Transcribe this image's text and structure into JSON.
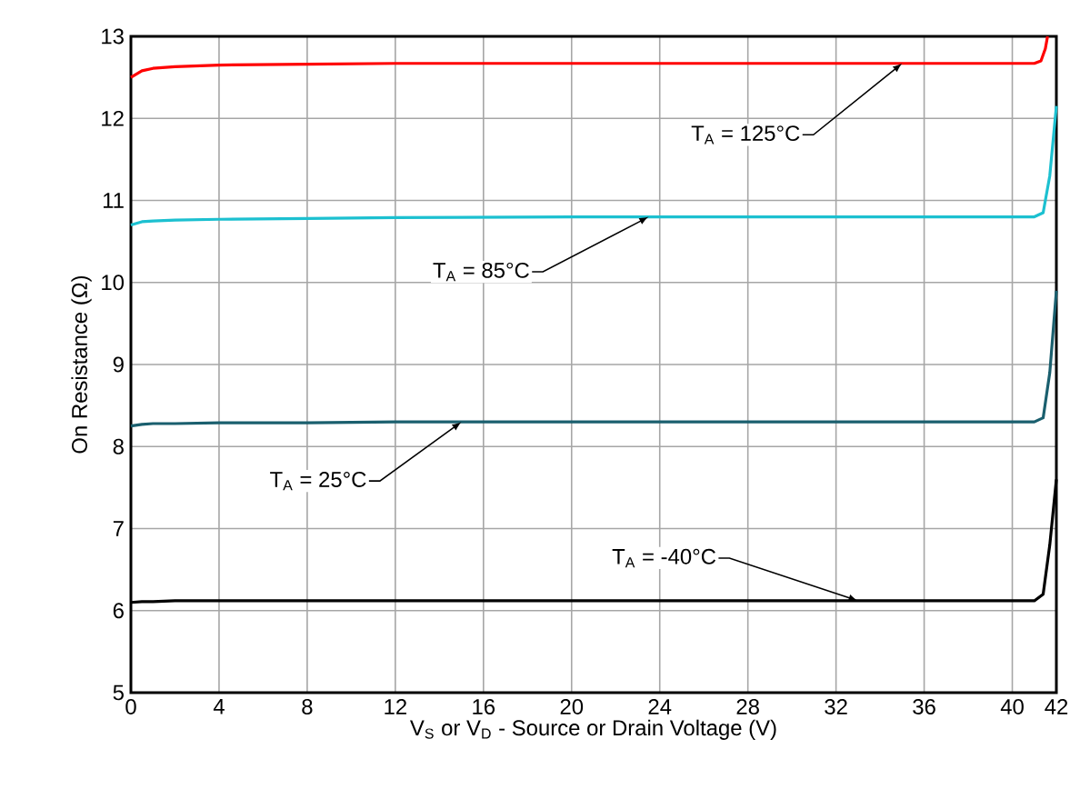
{
  "chart_data": {
    "type": "line",
    "xlabel": "V$_{S}$ or V$_{D}$ - Source or Drain Voltage (V)",
    "ylabel": "On Resistance (Ω)",
    "xlim": [
      0,
      42
    ],
    "xticks": [
      0,
      4,
      8,
      12,
      16,
      20,
      24,
      28,
      32,
      36,
      40,
      42
    ],
    "ylim": [
      5,
      13
    ],
    "yticks": [
      5,
      6,
      7,
      8,
      9,
      10,
      11,
      12,
      13
    ],
    "grid": true,
    "marker": "none",
    "line_style": "solid",
    "series": [
      {
        "color": "#ff0000",
        "x": [
          0,
          0.5,
          1,
          2,
          4,
          8,
          12,
          20,
          30,
          41,
          41.3,
          41.5,
          41.6
        ],
        "values": [
          12.5,
          12.58,
          12.61,
          12.63,
          12.65,
          12.66,
          12.67,
          12.67,
          12.67,
          12.67,
          12.7,
          12.85,
          13
        ]
      },
      {
        "color": "#1cc0d0",
        "x": [
          0,
          0.5,
          1,
          2,
          4,
          8,
          12,
          20,
          30,
          41,
          41.4,
          41.7,
          42
        ],
        "values": [
          10.7,
          10.74,
          10.75,
          10.76,
          10.77,
          10.78,
          10.79,
          10.8,
          10.8,
          10.8,
          10.85,
          11.3,
          12.15
        ]
      },
      {
        "color": "#1a5f6e",
        "x": [
          0,
          0.5,
          1,
          2,
          4,
          8,
          12,
          20,
          30,
          41,
          41.4,
          41.7,
          42
        ],
        "values": [
          8.25,
          8.27,
          8.28,
          8.28,
          8.29,
          8.29,
          8.3,
          8.3,
          8.3,
          8.3,
          8.35,
          8.9,
          9.9
        ]
      },
      {
        "color": "#000000",
        "x": [
          0,
          0.5,
          1,
          2,
          4,
          8,
          12,
          20,
          30,
          41,
          41.4,
          41.7,
          42
        ],
        "values": [
          6.1,
          6.11,
          6.11,
          6.12,
          6.12,
          6.12,
          6.12,
          6.12,
          6.12,
          6.12,
          6.2,
          6.8,
          7.6
        ]
      }
    ],
    "annotations": [
      {
        "text": "T$_{A}$ = 125°C",
        "x": 35,
        "y": 12.67
      },
      {
        "text": "T$_{A}$ = 85°C",
        "x": 23.5,
        "y": 10.8
      },
      {
        "text": "T$_{A}$ = 25°C",
        "x": 15,
        "y": 8.3
      },
      {
        "text": "T$_{A}$ = -40°C",
        "x": 33,
        "y": 6.12
      }
    ]
  }
}
